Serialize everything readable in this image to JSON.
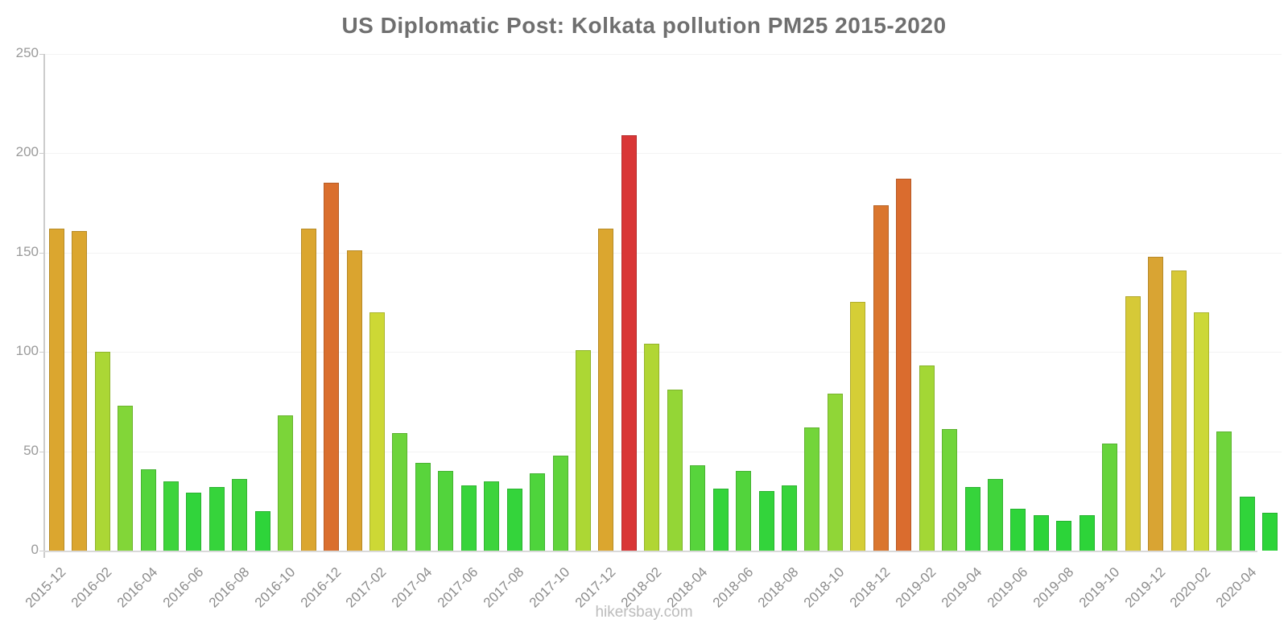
{
  "title": "US Diplomatic Post: Kolkata pollution PM25 2015-2020",
  "watermark": "hikersbay.com",
  "chart_data": {
    "type": "bar",
    "title": "US Diplomatic Post: Kolkata pollution PM25 2015-2020",
    "xlabel": "",
    "ylabel": "",
    "ylim": [
      0,
      250
    ],
    "yticks": [
      0,
      50,
      100,
      150,
      200,
      250
    ],
    "grid": true,
    "legend": "none",
    "x_tick_labels": [
      "2015-12",
      "2016-02",
      "2016-04",
      "2016-06",
      "2016-08",
      "2016-10",
      "2016-12",
      "2017-02",
      "2017-04",
      "2017-06",
      "2017-08",
      "2017-10",
      "2017-12",
      "2018-02",
      "2018-04",
      "2018-06",
      "2018-08",
      "2018-10",
      "2018-12",
      "2019-02",
      "2019-04",
      "2019-06",
      "2019-08",
      "2019-10",
      "2019-12",
      "2020-02",
      "2020-04"
    ],
    "categories": [
      "2015-12",
      "2016-01",
      "2016-02",
      "2016-03",
      "2016-04",
      "2016-05",
      "2016-06",
      "2016-07",
      "2016-08",
      "2016-09",
      "2016-10",
      "2016-11",
      "2016-12",
      "2017-01",
      "2017-02",
      "2017-03",
      "2017-04",
      "2017-05",
      "2017-06",
      "2017-07",
      "2017-08",
      "2017-09",
      "2017-10",
      "2017-11",
      "2017-12",
      "2018-01",
      "2018-02",
      "2018-03",
      "2018-04",
      "2018-05",
      "2018-06",
      "2018-07",
      "2018-08",
      "2018-09",
      "2018-10",
      "2018-11",
      "2018-12",
      "2019-01",
      "2019-02",
      "2019-03",
      "2019-04",
      "2019-05",
      "2019-06",
      "2019-07",
      "2019-08",
      "2019-09",
      "2019-10",
      "2019-11",
      "2019-12",
      "2020-01",
      "2020-02",
      "2020-03",
      "2020-04",
      "2020-05"
    ],
    "values": [
      162,
      161,
      100,
      73,
      41,
      35,
      29,
      32,
      36,
      20,
      68,
      162,
      185,
      151,
      120,
      59,
      44,
      40,
      33,
      35,
      31,
      39,
      48,
      101,
      162,
      209,
      104,
      81,
      43,
      31,
      40,
      30,
      33,
      62,
      79,
      125,
      174,
      187,
      93,
      61,
      32,
      36,
      21,
      18,
      15,
      18,
      54,
      128,
      148,
      141,
      120,
      60,
      27,
      19
    ],
    "bar_colors": [
      "#DBA62F",
      "#DBA62F",
      "#ABD735",
      "#82D638",
      "#54D43C",
      "#3ED43C",
      "#31D43B",
      "#36D43B",
      "#41D43C",
      "#2ED43A",
      "#7BD539",
      "#DBA62F",
      "#DA6F2E",
      "#DAA42F",
      "#CDD835",
      "#6DD43B",
      "#59D43C",
      "#52D43C",
      "#38D43B",
      "#3ED43C",
      "#34D43B",
      "#4ED43C",
      "#61D43B",
      "#ACD734",
      "#DBA62F",
      "#D93636",
      "#B1D634",
      "#94D636",
      "#57D43C",
      "#34D43B",
      "#52D43C",
      "#33D43B",
      "#38D43B",
      "#73D53A",
      "#90D637",
      "#D5CE36",
      "#DA762E",
      "#DA6C2E",
      "#A3D735",
      "#71D53A",
      "#36D43B",
      "#41D43C",
      "#2ED43A",
      "#2DD439",
      "#2CD439",
      "#2DD439",
      "#66D43B",
      "#D6C937",
      "#D9A433",
      "#D7C837",
      "#CCD838",
      "#6FD43B",
      "#30D43A",
      "#2DD439"
    ],
    "palette_legend": {
      "low_green": "#2ED43A",
      "mid_green": "#66D43B",
      "yellow_green": "#ABD735",
      "yellow": "#D6C937",
      "amber": "#DBA62F",
      "dark_orange": "#DA6F2E",
      "red": "#D93636"
    },
    "axis_colors": {
      "axis_line": "#cccccc",
      "baseline": "#d9d9d9",
      "gridline": "#f3f3f3",
      "tick_label": "#9a9a9a",
      "title": "#6f6f6f",
      "watermark": "#bcbcbc"
    }
  }
}
